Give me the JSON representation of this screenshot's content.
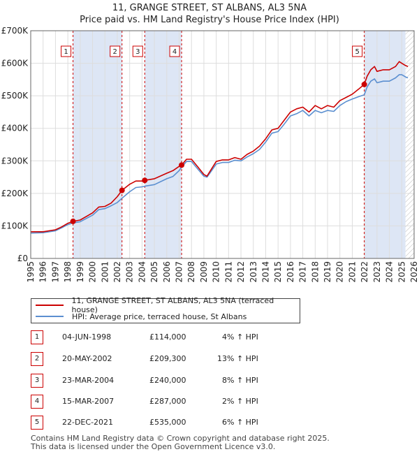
{
  "header": {
    "title_line1": "11, GRANGE STREET, ST ALBANS, AL3 5NA",
    "title_line2": "Price paid vs. HM Land Registry's House Price Index (HPI)"
  },
  "chart_data": {
    "type": "line",
    "title": "11, GRANGE STREET, ST ALBANS, AL3 5NA — Price paid vs. HM Land Registry's House Price Index (HPI)",
    "xlabel": "",
    "ylabel": "",
    "xlim": [
      1995,
      2026
    ],
    "ylim": [
      0,
      700000
    ],
    "x_ticks": [
      1995,
      1996,
      1997,
      1998,
      1999,
      2000,
      2001,
      2002,
      2003,
      2004,
      2005,
      2006,
      2007,
      2008,
      2009,
      2010,
      2011,
      2012,
      2013,
      2014,
      2015,
      2016,
      2017,
      2018,
      2019,
      2020,
      2021,
      2022,
      2023,
      2024,
      2025,
      2026
    ],
    "y_ticks": [
      0,
      100000,
      200000,
      300000,
      400000,
      500000,
      600000,
      700000
    ],
    "y_tick_labels": [
      "£0",
      "£100K",
      "£200K",
      "£300K",
      "£400K",
      "£500K",
      "£600K",
      "£700K"
    ],
    "grid": true,
    "colors": {
      "property": "#cc0000",
      "hpi": "#5b8fd0",
      "shade": "#dde6f5",
      "grid": "#dddddd",
      "vline": "#cc0000"
    },
    "series": [
      {
        "name": "11, GRANGE STREET, ST ALBANS, AL3 5NA (terraced house)",
        "color": "#cc0000",
        "x": [
          1995,
          1996,
          1997,
          1997.5,
          1998,
          1998.42,
          1999,
          2000,
          2000.5,
          2001,
          2001.5,
          2002,
          2002.38,
          2003,
          2003.5,
          2004,
          2004.22,
          2005,
          2006,
          2006.5,
          2007,
          2007.2,
          2007.6,
          2008,
          2008.5,
          2009,
          2009.25,
          2009.5,
          2010,
          2010.5,
          2011,
          2011.5,
          2012,
          2012.5,
          2013,
          2013.5,
          2014,
          2014.5,
          2015,
          2015.5,
          2016,
          2016.5,
          2017,
          2017.5,
          2018,
          2018.5,
          2019,
          2019.5,
          2020,
          2020.5,
          2021,
          2021.5,
          2021.97,
          2022.2,
          2022.5,
          2022.8,
          2023,
          2023.5,
          2024,
          2024.5,
          2024.8,
          2025,
          2025.3,
          2025.5
        ],
        "values": [
          82000,
          82000,
          88000,
          97000,
          108000,
          114000,
          118000,
          140000,
          158000,
          160000,
          170000,
          190000,
          209300,
          228000,
          238000,
          238000,
          240000,
          245000,
          262000,
          270000,
          283000,
          287000,
          305000,
          305000,
          282000,
          258000,
          253000,
          268000,
          298000,
          303000,
          303000,
          310000,
          305000,
          320000,
          330000,
          345000,
          368000,
          395000,
          400000,
          425000,
          450000,
          460000,
          465000,
          450000,
          470000,
          460000,
          470000,
          465000,
          485000,
          495000,
          505000,
          520000,
          535000,
          560000,
          580000,
          590000,
          575000,
          580000,
          580000,
          590000,
          605000,
          600000,
          593000,
          590000
        ]
      },
      {
        "name": "HPI: Average price, terraced house, St Albans",
        "color": "#5b8fd0",
        "x": [
          1995,
          1996,
          1997,
          1997.5,
          1998,
          1998.42,
          1999,
          2000,
          2000.5,
          2001,
          2001.5,
          2002,
          2002.38,
          2003,
          2003.5,
          2004,
          2004.22,
          2005,
          2006,
          2006.5,
          2007,
          2007.2,
          2007.6,
          2008,
          2008.5,
          2009,
          2009.25,
          2009.5,
          2010,
          2010.5,
          2011,
          2011.5,
          2012,
          2012.5,
          2013,
          2013.5,
          2014,
          2014.5,
          2015,
          2015.5,
          2016,
          2016.5,
          2017,
          2017.5,
          2018,
          2018.5,
          2019,
          2019.5,
          2020,
          2020.5,
          2021,
          2021.5,
          2021.97,
          2022.2,
          2022.5,
          2022.8,
          2023,
          2023.5,
          2024,
          2024.5,
          2024.8,
          2025,
          2025.3,
          2025.5
        ],
        "values": [
          78000,
          79000,
          85000,
          94000,
          104000,
          109000,
          113000,
          133000,
          150000,
          153000,
          162000,
          172000,
          185000,
          205000,
          218000,
          220000,
          222000,
          227000,
          245000,
          252000,
          270000,
          281000,
          298000,
          298000,
          275000,
          253000,
          250000,
          263000,
          290000,
          295000,
          295000,
          302000,
          300000,
          312000,
          322000,
          335000,
          358000,
          385000,
          390000,
          413000,
          438000,
          445000,
          455000,
          438000,
          455000,
          448000,
          455000,
          452000,
          470000,
          482000,
          490000,
          497000,
          503000,
          527000,
          545000,
          552000,
          540000,
          545000,
          545000,
          555000,
          565000,
          565000,
          558000,
          555000
        ]
      }
    ],
    "sales": [
      {
        "label": "1",
        "x": 1998.42,
        "value": 114000
      },
      {
        "label": "2",
        "x": 2002.38,
        "value": 209300
      },
      {
        "label": "3",
        "x": 2004.22,
        "value": 240000
      },
      {
        "label": "4",
        "x": 2007.2,
        "value": 287000
      },
      {
        "label": "5",
        "x": 2021.97,
        "value": 535000
      }
    ],
    "shaded_ranges": [
      [
        1998.42,
        2002.38
      ],
      [
        2004.22,
        2007.2
      ],
      [
        2021.97,
        2025.3
      ]
    ],
    "hatched_after": 2025.3
  },
  "legend": {
    "property": "11, GRANGE STREET, ST ALBANS, AL3 5NA (terraced house)",
    "hpi": "HPI: Average price, terraced house, St Albans"
  },
  "transactions": [
    {
      "num": "1",
      "date": "04-JUN-1998",
      "price": "£114,000",
      "hpi": "4% ↑ HPI"
    },
    {
      "num": "2",
      "date": "20-MAY-2002",
      "price": "£209,300",
      "hpi": "13% ↑ HPI"
    },
    {
      "num": "3",
      "date": "23-MAR-2004",
      "price": "£240,000",
      "hpi": "8% ↑ HPI"
    },
    {
      "num": "4",
      "date": "15-MAR-2007",
      "price": "£287,000",
      "hpi": "2% ↑ HPI"
    },
    {
      "num": "5",
      "date": "22-DEC-2021",
      "price": "£535,000",
      "hpi": "6% ↑ HPI"
    }
  ],
  "footer": {
    "line1": "Contains HM Land Registry data © Crown copyright and database right 2025.",
    "line2": "This data is licensed under the Open Government Licence v3.0."
  }
}
